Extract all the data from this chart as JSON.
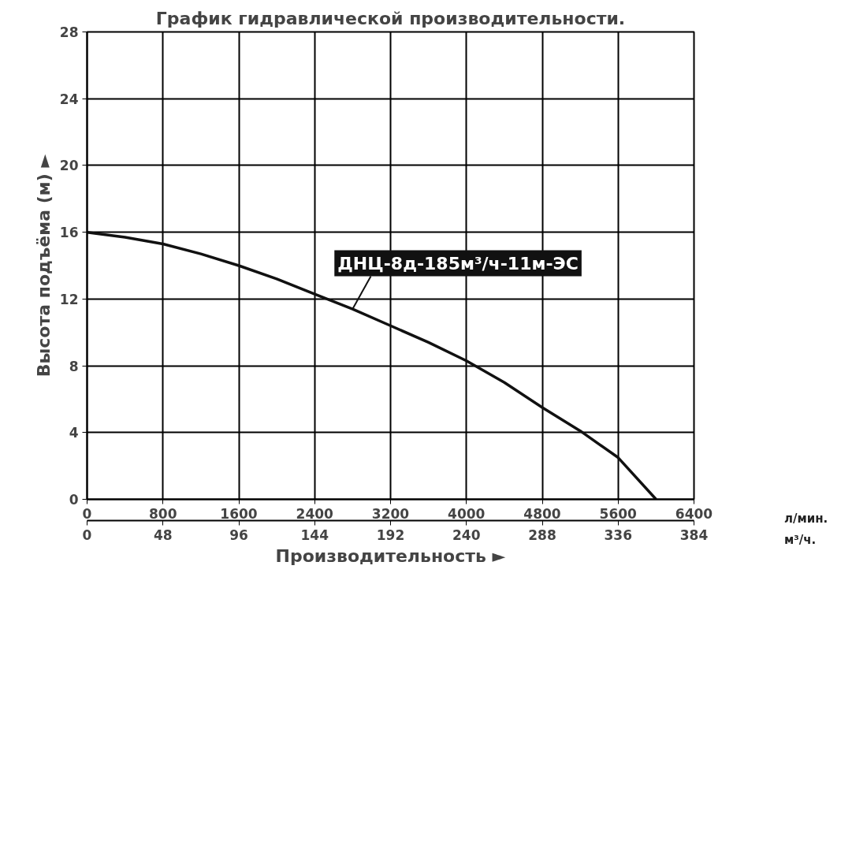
{
  "chart_data": {
    "type": "line",
    "title": "График гидравлической производительности.",
    "xlabel": "Производительность ►",
    "ylabel": "Высота подъёма (м) ►",
    "x": [
      0,
      400,
      800,
      1200,
      1600,
      2000,
      2400,
      2800,
      3200,
      3600,
      4000,
      4400,
      4800,
      5200,
      5600,
      6000
    ],
    "series": [
      {
        "name": "ДНЦ-8д-185м³/ч-11м-ЭС",
        "color": "#111111",
        "values": [
          16,
          15.7,
          15.3,
          14.7,
          14.0,
          13.2,
          12.3,
          11.4,
          10.4,
          9.4,
          8.3,
          7.0,
          5.5,
          4.1,
          2.5,
          0
        ]
      }
    ],
    "xlim": [
      0,
      6400
    ],
    "xticks": [
      0,
      800,
      1600,
      2400,
      3200,
      4000,
      4800,
      5600,
      6400
    ],
    "x2lim": [
      0,
      384
    ],
    "x2ticks": [
      0,
      48,
      96,
      144,
      192,
      240,
      288,
      336,
      384
    ],
    "ylim": [
      0,
      28
    ],
    "yticks": [
      0,
      4,
      8,
      12,
      16,
      20,
      24,
      28
    ],
    "annotations": [
      "л/мин.",
      "м³/ч."
    ],
    "grid": true,
    "marker": "none",
    "line_style": "solid"
  }
}
